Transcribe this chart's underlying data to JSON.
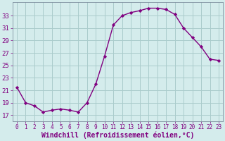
{
  "x": [
    0,
    1,
    2,
    3,
    4,
    5,
    6,
    7,
    8,
    9,
    10,
    11,
    12,
    13,
    14,
    15,
    16,
    17,
    18,
    19,
    20,
    21,
    22,
    23
  ],
  "y": [
    21.5,
    19.0,
    18.5,
    17.5,
    17.8,
    18.0,
    17.8,
    17.5,
    19.0,
    22.0,
    26.5,
    31.5,
    33.0,
    33.5,
    33.8,
    34.2,
    34.2,
    34.0,
    33.2,
    31.0,
    29.5,
    28.0,
    26.0,
    25.8
  ],
  "line_color": "#800080",
  "marker": "D",
  "marker_size": 2.2,
  "bg_color": "#d4ecec",
  "grid_color": "#aacccc",
  "xlabel": "Windchill (Refroidissement éolien,°C)",
  "xlabel_fontsize": 7,
  "ytick_labels": [
    "17",
    "19",
    "21",
    "23",
    "25",
    "27",
    "29",
    "31",
    "33"
  ],
  "ytick_vals": [
    17,
    19,
    21,
    23,
    25,
    27,
    29,
    31,
    33
  ],
  "xtick_vals": [
    0,
    1,
    2,
    3,
    4,
    5,
    6,
    7,
    8,
    9,
    10,
    11,
    12,
    13,
    14,
    15,
    16,
    17,
    18,
    19,
    20,
    21,
    22,
    23
  ],
  "ylim": [
    16.0,
    35.2
  ],
  "xlim": [
    -0.5,
    23.5
  ],
  "tick_fontsize": 6.5,
  "xtick_fontsize": 5.5
}
